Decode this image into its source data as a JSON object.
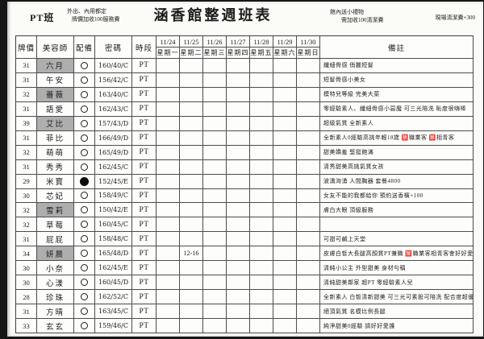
{
  "page": {
    "header": {
      "class_label": "PT班",
      "left_note_line1": "外出、內用都定",
      "left_note_line2": "牌價加收100服務費",
      "title": "涵香館整週班表",
      "right_note_line1": "館內送小禮物",
      "right_note_line2": "需加收100清潔費",
      "far_right_note": "現場清潔費+300"
    },
    "table": {
      "headers": {
        "price": "牌價",
        "beautician": "美容師",
        "equipment": "配備",
        "password": "密碼",
        "shift": "時段",
        "remarks": "備註"
      },
      "day_columns": [
        {
          "date": "11/24",
          "weekday": "星期一"
        },
        {
          "date": "11/25",
          "weekday": "星期二"
        },
        {
          "date": "11/26",
          "weekday": "星期三"
        },
        {
          "date": "11/27",
          "weekday": "星期四"
        },
        {
          "date": "11/28",
          "weekday": "星期五"
        },
        {
          "date": "11/29",
          "weekday": "星期六"
        },
        {
          "date": "11/30",
          "weekday": "星期日"
        }
      ],
      "rows": [
        {
          "price": "31",
          "name": "六月",
          "name_highlight": true,
          "equipment": "open-circle",
          "password": "160/40/C",
          "shift": "PT",
          "schedule": [
            "",
            "",
            "",
            "",
            "",
            "",
            ""
          ],
          "remark": "纖細骨感 俏麗短髮"
        },
        {
          "price": "31",
          "name": "午安",
          "name_highlight": false,
          "equipment": "open-circle",
          "password": "156/42/C",
          "shift": "PT",
          "schedule": [
            "",
            "",
            "",
            "",
            "",
            "",
            ""
          ],
          "remark": "短髮骨感小美女"
        },
        {
          "price": "32",
          "name": "薔薇",
          "name_highlight": true,
          "equipment": "open-circle",
          "password": "163/40/C",
          "shift": "PT",
          "schedule": [
            "",
            "",
            "",
            "",
            "",
            "",
            ""
          ],
          "remark": "模特兒等級 完美大菜"
        },
        {
          "price": "31",
          "name": "語愛",
          "name_highlight": false,
          "equipment": "open-circle",
          "password": "162/43/C",
          "shift": "PT",
          "schedule": [
            "",
            "",
            "",
            "",
            "",
            "",
            ""
          ],
          "remark": "零經驗素人、纖細骨感小惡魔 可三光陪洗 恥度很嗨棒"
        },
        {
          "price": "39",
          "name": "艾比",
          "name_highlight": true,
          "equipment": "open-circle",
          "password": "157/43/D",
          "shift": "PT",
          "schedule": [
            "",
            "",
            "",
            "",
            "",
            "",
            ""
          ],
          "remark": "超級氣質 全新素人"
        },
        {
          "price": "31",
          "name": "菲比",
          "name_highlight": false,
          "equipment": "open-circle",
          "password": "166/49/D",
          "shift": "PT",
          "schedule": [
            "",
            "",
            "",
            "",
            "",
            "",
            ""
          ],
          "remark": "全新素人0經驗高挑年輕18歲 🈲職業客 🈲相青客"
        },
        {
          "price": "32",
          "name": "萌萌",
          "name_highlight": false,
          "equipment": "open-circle",
          "password": "165/49/D",
          "shift": "PT",
          "schedule": [
            "",
            "",
            "",
            "",
            "",
            "",
            ""
          ],
          "remark": "甜美嬌羞 堅挺飽滿"
        },
        {
          "price": "31",
          "name": "秀秀",
          "name_highlight": false,
          "equipment": "open-circle",
          "password": "162/45/C",
          "shift": "PT",
          "schedule": [
            "",
            "",
            "",
            "",
            "",
            "",
            ""
          ],
          "remark": "清秀甜美高挑氣質女孩"
        },
        {
          "price": "29",
          "name": "米寶",
          "name_highlight": false,
          "equipment": "filled-circle",
          "password": "152/45/E",
          "shift": "PT",
          "schedule": [
            "",
            "",
            "",
            "",
            "",
            "",
            ""
          ],
          "remark": "波濤洶湧 人間胸器 套餐4800"
        },
        {
          "price": "30",
          "name": "芯妃",
          "name_highlight": false,
          "equipment": "open-circle",
          "password": "158/49/C",
          "shift": "PT",
          "schedule": [
            "",
            "",
            "",
            "",
            "",
            "",
            ""
          ],
          "remark": "女友不能的我都給你 預約送香檳+100"
        },
        {
          "price": "32",
          "name": "雪莉",
          "name_highlight": true,
          "equipment": "open-circle",
          "password": "150/42/E",
          "shift": "PT",
          "schedule": [
            "",
            "",
            "",
            "",
            "",
            "",
            ""
          ],
          "remark": "膚白大眼 頂級服務"
        },
        {
          "price": "32",
          "name": "草莓",
          "name_highlight": false,
          "equipment": "open-circle",
          "password": "160/45/C",
          "shift": "PT",
          "schedule": [
            "",
            "",
            "",
            "",
            "",
            "",
            ""
          ],
          "remark": ""
        },
        {
          "price": "31",
          "name": "屁屁",
          "name_highlight": false,
          "equipment": "open-circle",
          "password": "158/48/C",
          "shift": "PT",
          "schedule": [
            "",
            "",
            "",
            "",
            "",
            "",
            ""
          ],
          "remark": "可甜可鹹上天堂"
        },
        {
          "price": "34",
          "name": "妍晨",
          "name_highlight": true,
          "equipment": "open-circle",
          "password": "165/48/D",
          "shift": "PT",
          "schedule": [
            "",
            "12-16",
            "",
            "",
            "",
            "",
            ""
          ],
          "remark": "皮膚白皙大長腿高顏質PT兼職 🈲職業客相青客會好好愛護喔"
        },
        {
          "price": "30",
          "name": "小奈",
          "name_highlight": false,
          "equipment": "open-circle",
          "password": "162/45/E",
          "shift": "PT",
          "schedule": [
            "",
            "",
            "",
            "",
            "",
            "",
            ""
          ],
          "remark": "清純小公主 外型甜美 身材勻稱"
        },
        {
          "price": "30",
          "name": "心漾",
          "name_highlight": false,
          "equipment": "open-circle",
          "password": "160/45/D",
          "shift": "PT",
          "schedule": [
            "",
            "",
            "",
            "",
            "",
            "",
            ""
          ],
          "remark": "清純甜美鄰家 超PT 零經驗素人兒"
        },
        {
          "price": "28",
          "name": "珍珠",
          "name_highlight": false,
          "equipment": "open-circle",
          "password": "162/52/C",
          "shift": "PT",
          "schedule": [
            "",
            "",
            "",
            "",
            "",
            "",
            ""
          ],
          "remark": "全新素人 白皙清新甜美 可三光可素股可陪洗 配合度超優"
        },
        {
          "price": "31",
          "name": "方晴",
          "name_highlight": false,
          "equipment": "open-circle",
          "password": "163/45/C",
          "shift": "PT",
          "schedule": [
            "",
            "",
            "",
            "",
            "",
            "",
            ""
          ],
          "remark": "絕頂氣質 名模比例長腿"
        },
        {
          "price": "33",
          "name": "玄玄",
          "name_highlight": false,
          "equipment": "open-circle",
          "password": "159/46/C",
          "shift": "PT",
          "schedule": [
            "",
            "",
            "",
            "",
            "",
            "",
            ""
          ],
          "remark": "純淨甜美0經驗 請好好愛護"
        }
      ]
    },
    "colors": {
      "highlight_gray": "#aeaeae",
      "grid_line": "#4c4c4c",
      "page_background": "#fbfbf8",
      "scan_edge": "#161616"
    }
  }
}
